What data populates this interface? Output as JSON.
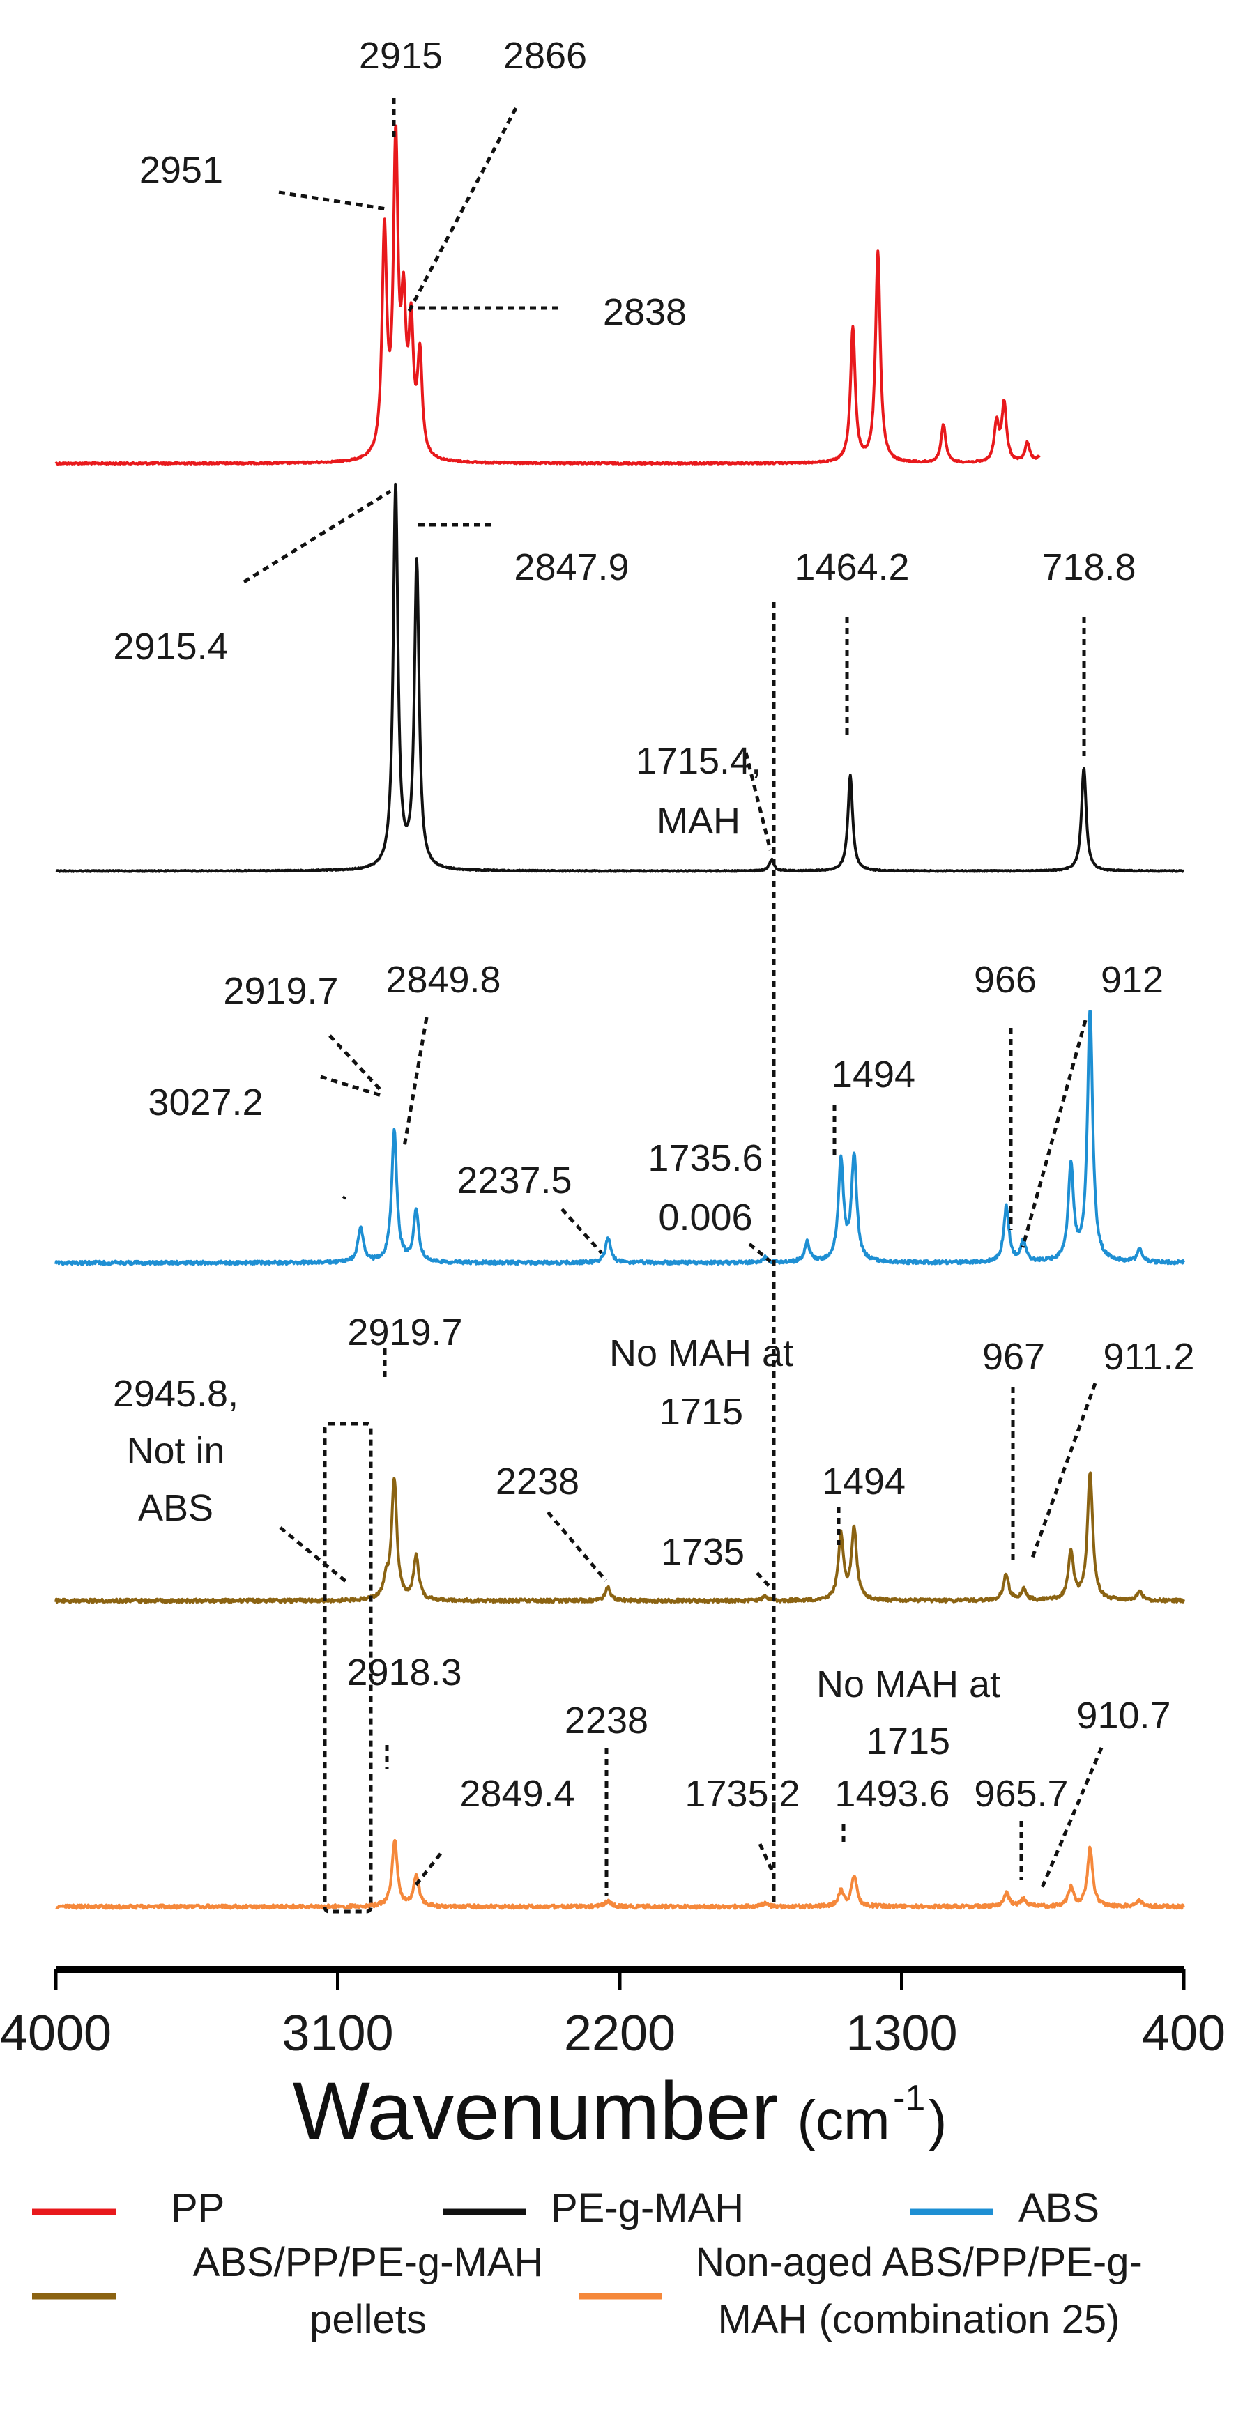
{
  "chart_data": {
    "type": "line",
    "xlabel": "Wavenumber",
    "xlabel_unit_base": "(cm",
    "xlabel_unit_exp": "-1",
    "xlabel_unit_close": ")",
    "xlim": [
      4000,
      400
    ],
    "xticks": [
      4000,
      3100,
      2200,
      1300,
      400
    ],
    "xtick_labels": [
      "4000",
      "3100",
      "2200",
      "1300",
      "400"
    ],
    "grid": false,
    "legend_position": "bottom",
    "series": [
      {
        "name": "PP",
        "color": "#e8191c",
        "peaks": [
          [
            2951,
            0.58
          ],
          [
            2915,
            0.8
          ],
          [
            2890,
            0.35
          ],
          [
            2866,
            0.32
          ],
          [
            2838,
            0.26
          ],
          [
            1456,
            0.35
          ],
          [
            1376,
            0.55
          ],
          [
            1167,
            0.1
          ],
          [
            997,
            0.1
          ],
          [
            973,
            0.15
          ],
          [
            899,
            0.05
          ],
          [
            841,
            0.1
          ]
        ],
        "annotations": [
          "2951",
          "2915",
          "2866",
          "2838"
        ]
      },
      {
        "name": "PE-g-MAH",
        "color": "#111111",
        "peaks": [
          [
            2915.4,
            1.0
          ],
          [
            2847.9,
            0.8
          ],
          [
            1715.4,
            0.03
          ],
          [
            1464.2,
            0.25
          ],
          [
            718.8,
            0.27
          ]
        ],
        "annotations": [
          "2915.4",
          "2847.9",
          "1715.4,",
          "MAH",
          "1464.2",
          "718.8"
        ]
      },
      {
        "name": "ABS",
        "color": "#1e8fd3",
        "peaks": [
          [
            3027.2,
            0.14
          ],
          [
            2919.7,
            0.52
          ],
          [
            2849.8,
            0.2
          ],
          [
            2237.5,
            0.1
          ],
          [
            1735.6,
            0.02
          ],
          [
            1602,
            0.08
          ],
          [
            1494,
            0.4
          ],
          [
            1452,
            0.42
          ],
          [
            966,
            0.22
          ],
          [
            912,
            0.08
          ],
          [
            760,
            0.38
          ],
          [
            699,
            1.0
          ],
          [
            540,
            0.05
          ]
        ],
        "annotations": [
          "3027.2",
          "2919.7",
          "2849.8",
          "2237.5",
          "1735.6",
          "0.006",
          "1494",
          "966",
          "912"
        ]
      },
      {
        "name": "ABS/PP/PE-g-MAH pellets",
        "color": "#8b6312",
        "peaks": [
          [
            2945.8,
            0.08
          ],
          [
            2919.7,
            0.56
          ],
          [
            2849.8,
            0.2
          ],
          [
            2238,
            0.06
          ],
          [
            1735,
            0.02
          ],
          [
            1494,
            0.3
          ],
          [
            1452,
            0.33
          ],
          [
            967,
            0.12
          ],
          [
            911.2,
            0.05
          ],
          [
            760,
            0.22
          ],
          [
            699,
            0.59
          ],
          [
            540,
            0.04
          ]
        ],
        "annotations": [
          "2945.8,",
          "Not in",
          "ABS",
          "2919.7",
          "No MAH at",
          "1715",
          "2238",
          "1735",
          "1494",
          "967",
          "911.2"
        ]
      },
      {
        "name": "Non-aged ABS/PP/PE-g-MAH (combination 25)",
        "color": "#f5883b",
        "peaks": [
          [
            2918.3,
            0.34
          ],
          [
            2849.4,
            0.16
          ],
          [
            2238,
            0.03
          ],
          [
            1735.2,
            0.02
          ],
          [
            1493.6,
            0.08
          ],
          [
            1452,
            0.16
          ],
          [
            965.7,
            0.07
          ],
          [
            910.7,
            0.04
          ],
          [
            760,
            0.1
          ],
          [
            699,
            0.3
          ],
          [
            540,
            0.03
          ]
        ],
        "annotations": [
          "2918.3",
          "2849.4",
          "2238",
          "No MAH at",
          "1715",
          "1735.2",
          "1493.6",
          "965.7",
          "910.7"
        ]
      }
    ]
  }
}
